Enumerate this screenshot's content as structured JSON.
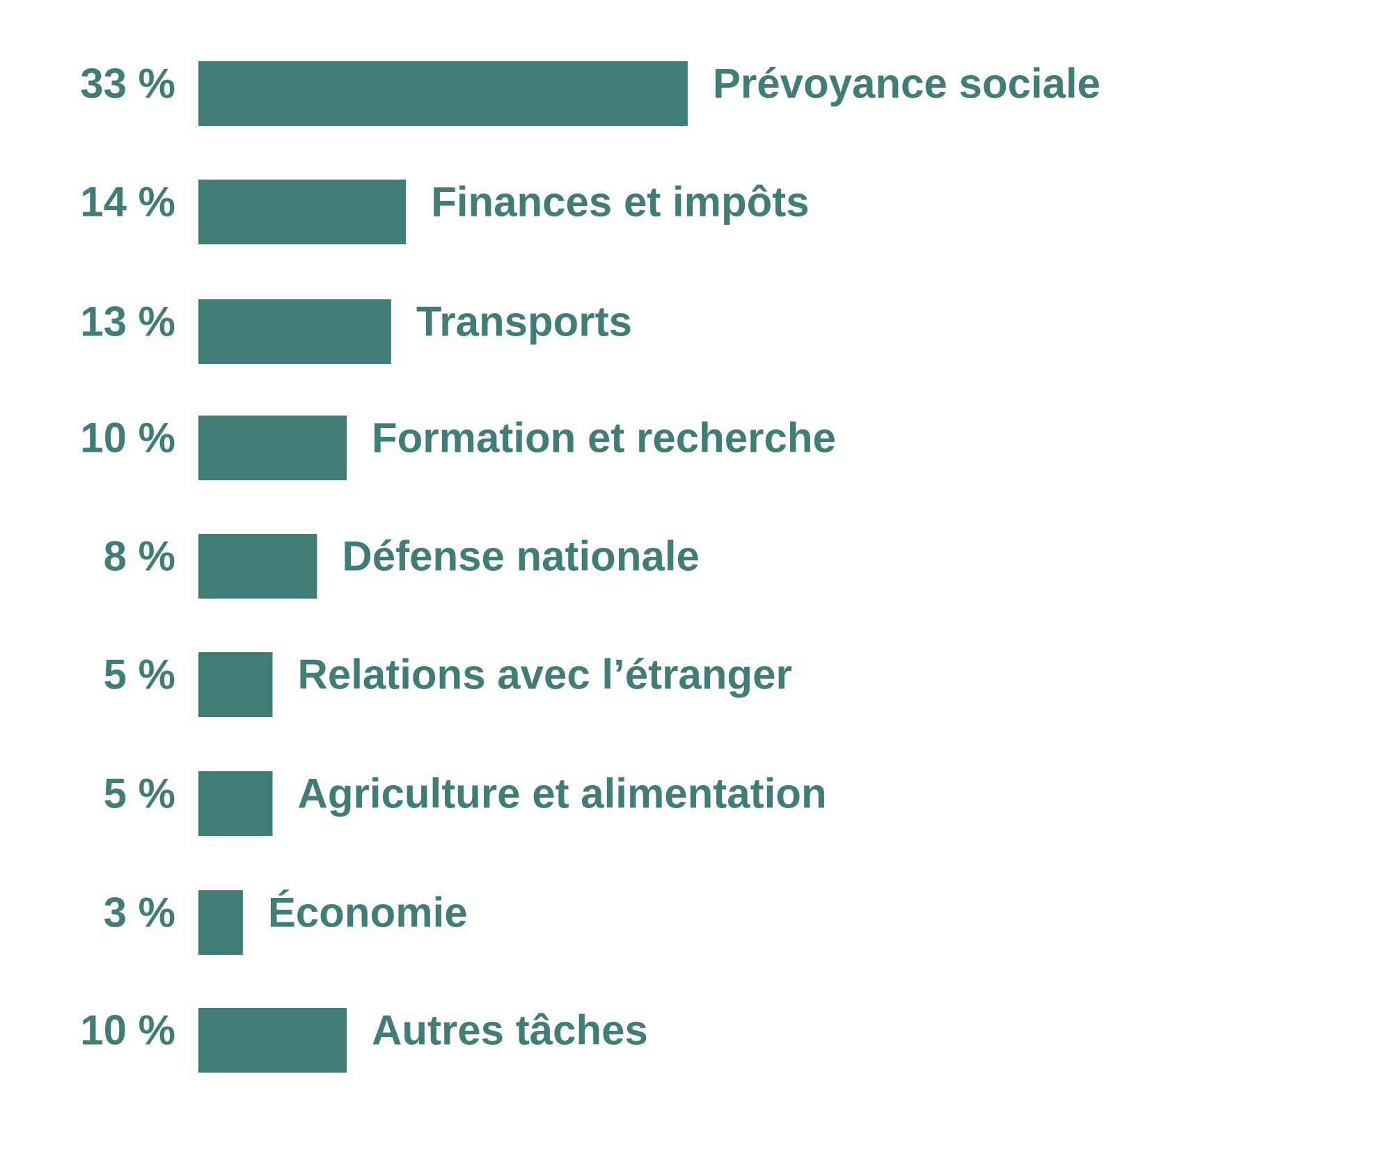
{
  "chart_data": {
    "type": "bar",
    "orientation": "horizontal",
    "categories": [
      "Prévoyance sociale",
      "Finances et impôts",
      "Transports",
      "Formation et recherche",
      "Défense nationale",
      "Relations avec l’étranger",
      "Agriculture et alimentation",
      "Économie",
      "Autres tâches"
    ],
    "values": [
      33,
      14,
      13,
      10,
      8,
      5,
      5,
      3,
      10
    ],
    "value_labels": [
      "33 %",
      "14 %",
      "13 %",
      "10 %",
      "8 %",
      "5 %",
      "5 %",
      "3 %",
      "10 %"
    ],
    "unit": "%",
    "title": "",
    "xlabel": "",
    "ylabel": "",
    "grid": false,
    "legend": "none",
    "bar_color": "#417d77",
    "label_color": "#417d77"
  }
}
